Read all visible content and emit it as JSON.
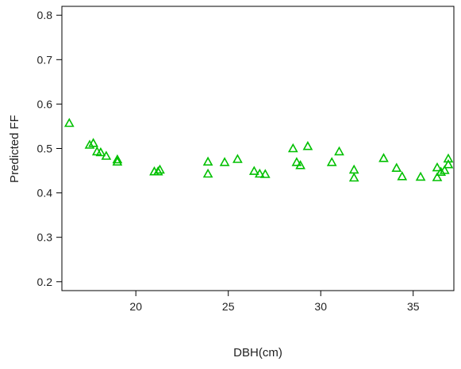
{
  "chart_data": {
    "type": "scatter",
    "title": "",
    "xlabel": "DBH(cm)",
    "ylabel": "Predicted FF",
    "xlim": [
      16.0,
      37.2
    ],
    "ylim": [
      0.18,
      0.82
    ],
    "xticks": [
      20,
      25,
      30,
      35
    ],
    "xtick_labels": [
      "20",
      "25",
      "30",
      "35"
    ],
    "yticks": [
      0.2,
      0.3,
      0.4,
      0.5,
      0.6,
      0.7,
      0.8
    ],
    "ytick_labels": [
      "0.2",
      "0.3",
      "0.4",
      "0.5",
      "0.6",
      "0.7",
      "0.8"
    ],
    "grid": false,
    "marker": "open-triangle",
    "marker_color": "#00c000",
    "series": [
      {
        "x": [
          16.4,
          17.5,
          17.7,
          17.9,
          18.1,
          18.4,
          19.0,
          19.0,
          21.0,
          21.2,
          21.3,
          23.9,
          23.9,
          24.8,
          25.5,
          26.4,
          26.7,
          27.0,
          28.5,
          28.7,
          28.9,
          29.3,
          30.6,
          31.0,
          31.8,
          31.8,
          33.4,
          34.1,
          34.4,
          35.4,
          36.3,
          36.3,
          36.5,
          36.7,
          36.9,
          36.9
        ],
        "y": [
          0.557,
          0.508,
          0.512,
          0.493,
          0.491,
          0.483,
          0.475,
          0.47,
          0.448,
          0.448,
          0.452,
          0.47,
          0.443,
          0.469,
          0.476,
          0.449,
          0.443,
          0.442,
          0.5,
          0.469,
          0.462,
          0.505,
          0.469,
          0.493,
          0.452,
          0.434,
          0.478,
          0.456,
          0.437,
          0.436,
          0.457,
          0.435,
          0.447,
          0.451,
          0.477,
          0.464
        ]
      }
    ]
  }
}
